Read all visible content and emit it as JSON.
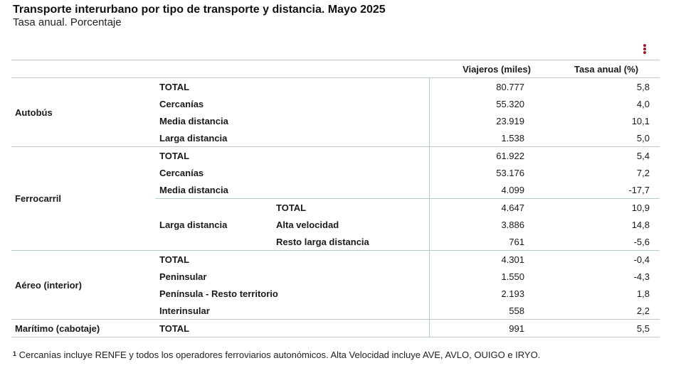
{
  "title": "Transporte interurbano por tipo de transporte y distancia. Mayo 2025",
  "subtitle": "Tasa anual. Porcentaje",
  "menu_icon": "more-vertical-icon",
  "accent_color": "#9b1b30",
  "columns": {
    "viajeros": "Viajeros (miles)",
    "tasa": "Tasa anual (%)"
  },
  "groups": {
    "autobus": {
      "label": "Autobús",
      "rows": [
        {
          "label": "TOTAL",
          "viajeros": "80.777",
          "tasa": "5,8"
        },
        {
          "label": "Cercanías",
          "viajeros": "55.320",
          "tasa": "4,0"
        },
        {
          "label": "Media distancia",
          "viajeros": "23.919",
          "tasa": "10,1"
        },
        {
          "label": "Larga distancia",
          "viajeros": "1.538",
          "tasa": "5,0"
        }
      ]
    },
    "ferrocarril": {
      "label": "Ferrocarril",
      "rows": [
        {
          "label": "TOTAL",
          "viajeros": "61.922",
          "tasa": "5,4"
        },
        {
          "label": "Cercanías",
          "viajeros": "53.176",
          "tasa": "7,2"
        },
        {
          "label": "Media distancia",
          "viajeros": "4.099",
          "tasa": "-17,7"
        }
      ],
      "larga": {
        "label": "Larga distancia",
        "rows": [
          {
            "label": "TOTAL",
            "viajeros": "4.647",
            "tasa": "10,9"
          },
          {
            "label": "Alta velocidad",
            "viajeros": "3.886",
            "tasa": "14,8"
          },
          {
            "label": "Resto larga distancia",
            "viajeros": "761",
            "tasa": "-5,6"
          }
        ]
      }
    },
    "aereo": {
      "label": "Aéreo (interior)",
      "rows": [
        {
          "label": "TOTAL",
          "viajeros": "4.301",
          "tasa": "-0,4"
        },
        {
          "label": "Peninsular",
          "viajeros": "1.550",
          "tasa": "-4,3"
        },
        {
          "label": "Península - Resto territorio",
          "viajeros": "2.193",
          "tasa": "1,8"
        },
        {
          "label": "Interinsular",
          "viajeros": "558",
          "tasa": "2,2"
        }
      ]
    },
    "maritimo": {
      "label": "Marítimo (cabotaje)",
      "rows": [
        {
          "label": "TOTAL",
          "viajeros": "991",
          "tasa": "5,5"
        }
      ]
    }
  },
  "footnote": {
    "mark": "1",
    "text": "Cercanías incluye RENFE y todos los operadores ferroviarios autonómicos. Alta Velocidad incluye AVE, AVLO, OUIGO e IRYO."
  }
}
